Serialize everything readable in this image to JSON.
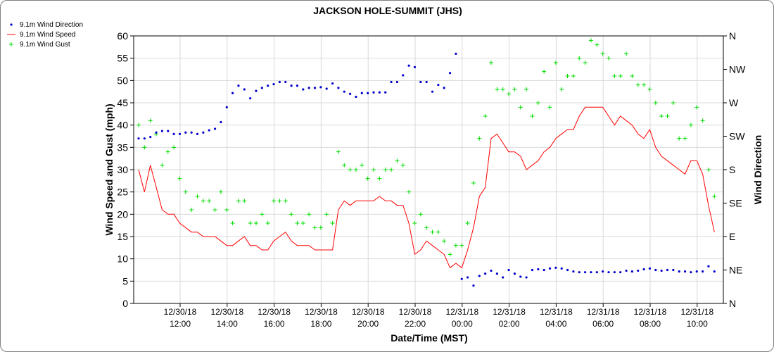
{
  "chart_data": {
    "type": "line",
    "title": "JACKSON HOLE-SUMMIT (JHS)",
    "xlabel": "Date/Time (MST)",
    "ylabel": "Wind Speed and Gust (mph)",
    "y2label": "Wind Direction",
    "ylim": [
      0,
      60
    ],
    "y_ticks": [
      "0",
      "5",
      "10",
      "15",
      "20",
      "25",
      "30",
      "35",
      "40",
      "45",
      "50",
      "55",
      "60"
    ],
    "y2_ticks": [
      "N",
      "NE",
      "E",
      "SE",
      "S",
      "SW",
      "W",
      "NW",
      "N"
    ],
    "x_ticks": [
      {
        "date": "12/30/18",
        "time": "12:00"
      },
      {
        "date": "12/30/18",
        "time": "14:00"
      },
      {
        "date": "12/30/18",
        "time": "16:00"
      },
      {
        "date": "12/30/18",
        "time": "18:00"
      },
      {
        "date": "12/30/18",
        "time": "20:00"
      },
      {
        "date": "12/30/18",
        "time": "22:00"
      },
      {
        "date": "12/31/18",
        "time": "00:00"
      },
      {
        "date": "12/31/18",
        "time": "02:00"
      },
      {
        "date": "12/31/18",
        "time": "04:00"
      },
      {
        "date": "12/31/18",
        "time": "06:00"
      },
      {
        "date": "12/31/18",
        "time": "08:00"
      },
      {
        "date": "12/31/18",
        "time": "10:00"
      }
    ],
    "x_start": "12/30/18 10:10",
    "x_interval_minutes": 15,
    "grid": true,
    "legend_position": "top-left",
    "series": [
      {
        "name": "9.1m Wind Speed",
        "style": "line",
        "color": "#ff0000",
        "axis": "left",
        "values": [
          30,
          25,
          31,
          26,
          21,
          20,
          20,
          18,
          17,
          16,
          16,
          15,
          15,
          15,
          14,
          13,
          13,
          14,
          15,
          13,
          13,
          12,
          12,
          14,
          15,
          16,
          14,
          13,
          13,
          13,
          12,
          12,
          12,
          12,
          21,
          23,
          22,
          23,
          23,
          23,
          23,
          24,
          23,
          23,
          22,
          22,
          18,
          11,
          12,
          14,
          13,
          12,
          11,
          8,
          9,
          8,
          12,
          17,
          24,
          26,
          37,
          38,
          36,
          34,
          34,
          33,
          30,
          31,
          32,
          34,
          35,
          37,
          38,
          39,
          39,
          42,
          44,
          44,
          44,
          44,
          42,
          40,
          42,
          41,
          40,
          38,
          37,
          39,
          35,
          33,
          32,
          31,
          30,
          29,
          32,
          32,
          29,
          22,
          16
        ]
      },
      {
        "name": "9.1m Wind Gust",
        "style": "plus",
        "color": "#00dd00",
        "axis": "left",
        "values": [
          40,
          35,
          41,
          38,
          31,
          34,
          35,
          28,
          25,
          21,
          24,
          23,
          23,
          21,
          25,
          21,
          18,
          23,
          23,
          18,
          18,
          20,
          18,
          23,
          23,
          23,
          20,
          18,
          18,
          20,
          17,
          17,
          20,
          18,
          34,
          31,
          30,
          30,
          31,
          28,
          30,
          28,
          30,
          30,
          32,
          31,
          25,
          18,
          20,
          17,
          16,
          16,
          14,
          11,
          13,
          13,
          18,
          27,
          37,
          42,
          54,
          48,
          48,
          47,
          48,
          44,
          48,
          42,
          45,
          52,
          44,
          54,
          48,
          51,
          51,
          55,
          54,
          59,
          58,
          56,
          55,
          51,
          51,
          56,
          51,
          49,
          49,
          48,
          45,
          42,
          42,
          45,
          37,
          37,
          40,
          44,
          41,
          30,
          24
        ]
      },
      {
        "name": "9.1m Wind Direction",
        "style": "dot",
        "color": "#0000cc",
        "axis": "right",
        "unit": "degrees",
        "values": [
          222,
          222,
          224,
          230,
          232,
          232,
          228,
          228,
          230,
          230,
          228,
          230,
          233,
          235,
          244,
          264,
          283,
          293,
          288,
          276,
          286,
          290,
          293,
          295,
          298,
          298,
          293,
          293,
          288,
          290,
          290,
          291,
          289,
          296,
          290,
          285,
          282,
          278,
          283,
          283,
          284,
          284,
          284,
          298,
          298,
          307,
          320,
          318,
          298,
          298,
          285,
          294,
          290,
          310,
          336,
          33,
          35,
          24,
          37,
          40,
          44,
          40,
          35,
          45,
          40,
          36,
          35,
          45,
          46,
          45,
          47,
          48,
          47,
          45,
          43,
          42,
          42,
          42,
          42,
          43,
          42,
          42,
          42,
          44,
          43,
          44,
          46,
          47,
          45,
          44,
          45,
          45,
          43,
          43,
          42,
          43,
          43,
          50,
          43
        ]
      }
    ]
  }
}
